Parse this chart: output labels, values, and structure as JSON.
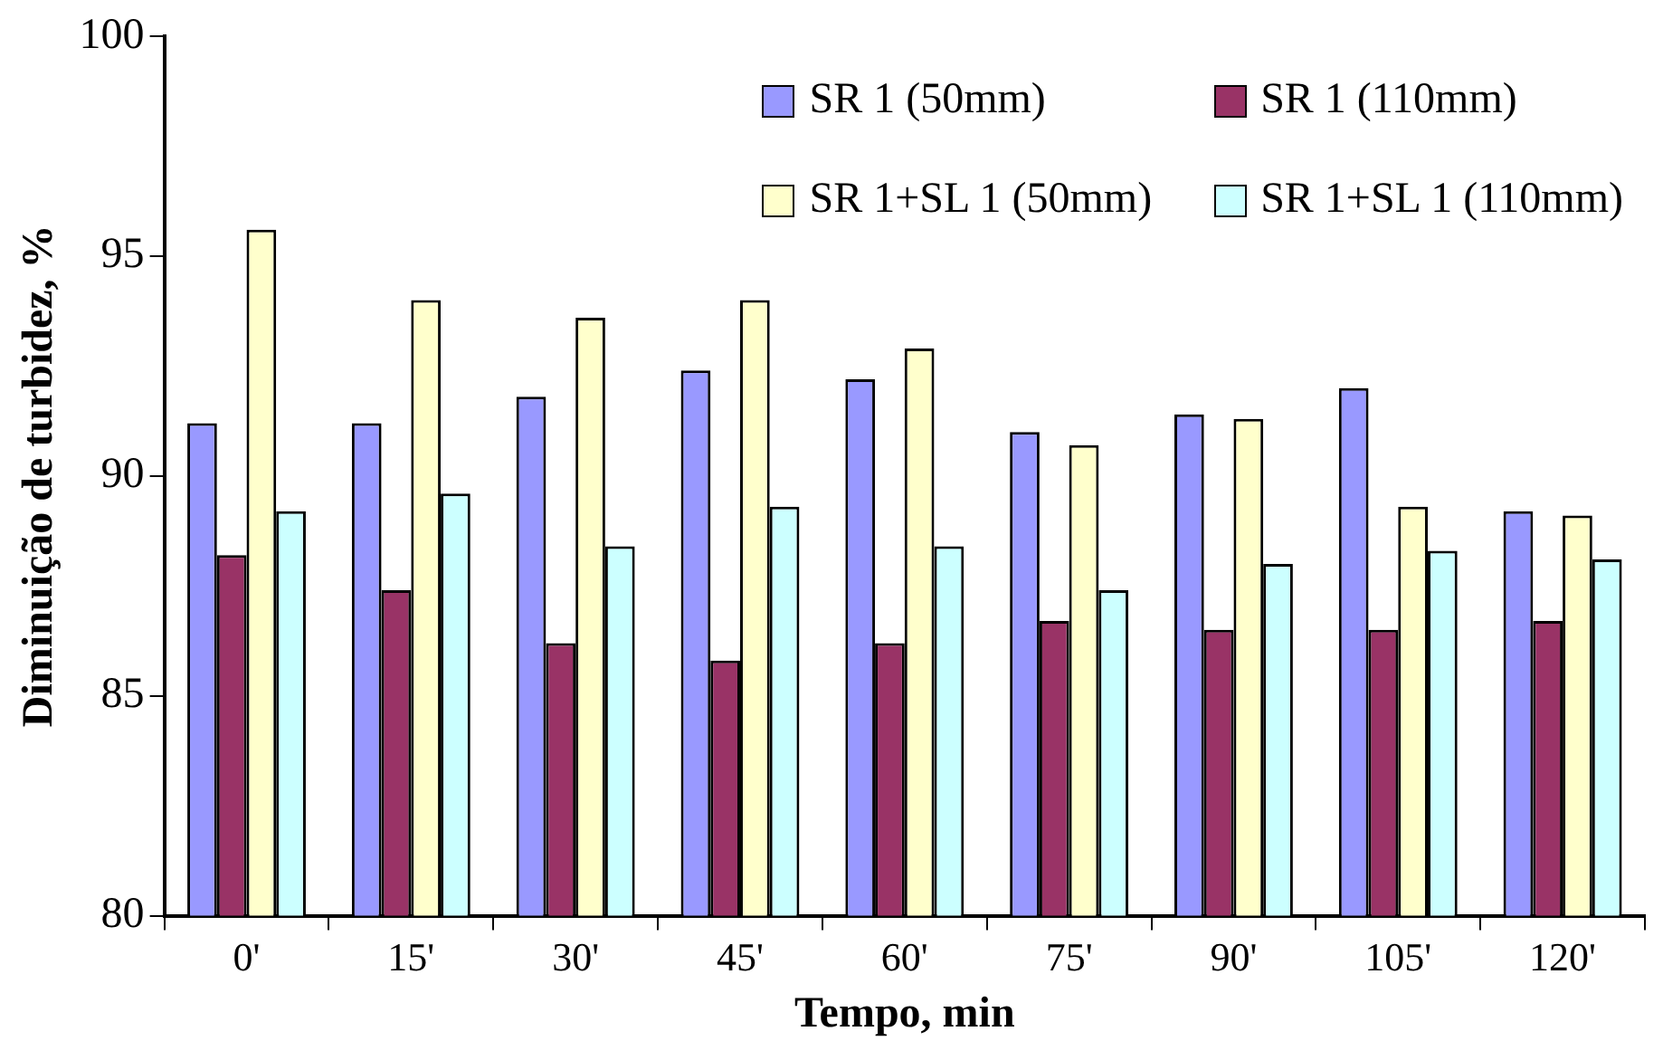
{
  "chart_data": {
    "type": "bar",
    "xlabel": "Tempo, min",
    "ylabel": "Diminuição de turbidez, %",
    "categories": [
      "0'",
      "15'",
      "30'",
      "45'",
      "60'",
      "75'",
      "90'",
      "105'",
      "120'"
    ],
    "series": [
      {
        "name": "SR 1 (50mm)",
        "color": "#9999ff",
        "values": [
          91.2,
          91.2,
          91.8,
          92.4,
          92.2,
          91.0,
          91.4,
          92.0,
          89.2
        ]
      },
      {
        "name": "SR 1 (110mm)",
        "color": "#993366",
        "values": [
          88.2,
          87.4,
          86.2,
          85.8,
          86.2,
          86.7,
          86.5,
          86.5,
          86.7
        ]
      },
      {
        "name": "SR 1+SL 1 (50mm)",
        "color": "#ffffcc",
        "values": [
          95.6,
          94.0,
          93.6,
          94.0,
          92.9,
          90.7,
          91.3,
          89.3,
          89.1
        ]
      },
      {
        "name": "SR 1+SL 1 (110mm)",
        "color": "#ccffff",
        "values": [
          89.2,
          89.6,
          88.4,
          89.3,
          88.4,
          87.4,
          88.0,
          88.3,
          88.1
        ]
      }
    ],
    "ylim": [
      80,
      100
    ],
    "yticks": [
      80,
      85,
      90,
      95,
      100
    ],
    "grid": false,
    "legend": "top right"
  }
}
